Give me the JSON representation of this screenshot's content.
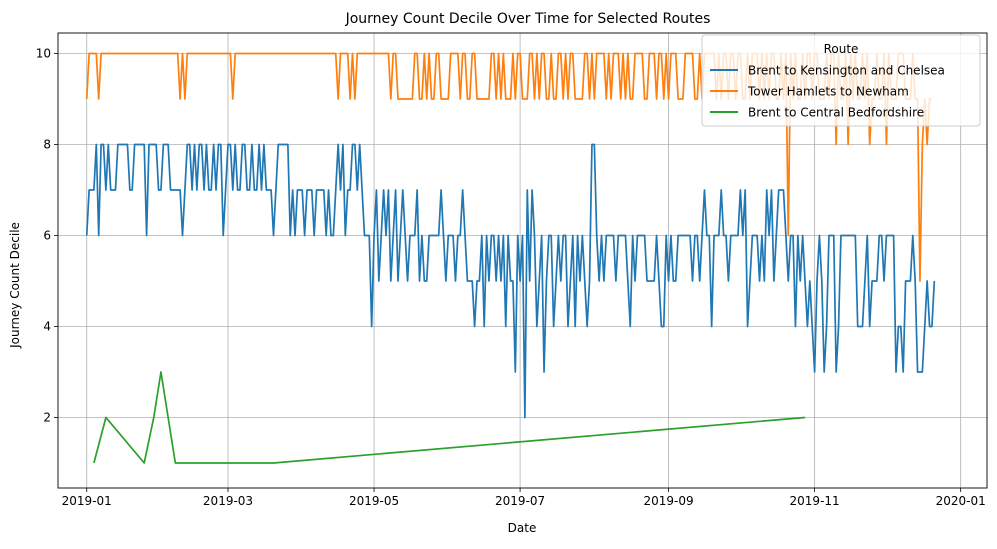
{
  "chart_data": {
    "type": "line",
    "title": "Journey Count Decile Over Time for Selected Routes",
    "xlabel": "Date",
    "ylabel": "Journey Count Decile",
    "x_range": [
      "2018-12-20",
      "2020-01-12"
    ],
    "ylim": [
      0.45,
      10.45
    ],
    "x_ticks": [
      {
        "date": "2019-01-01",
        "label": "2019-01"
      },
      {
        "date": "2019-03-01",
        "label": "2019-03"
      },
      {
        "date": "2019-05-01",
        "label": "2019-05"
      },
      {
        "date": "2019-07-01",
        "label": "2019-07"
      },
      {
        "date": "2019-09-01",
        "label": "2019-09"
      },
      {
        "date": "2019-11-01",
        "label": "2019-11"
      },
      {
        "date": "2020-01-01",
        "label": "2020-01"
      }
    ],
    "y_ticks": [
      2,
      4,
      6,
      8,
      10
    ],
    "grid": true,
    "legend_title": "Route",
    "legend_position": "top-right",
    "series": [
      {
        "name": "Brent to Kensington and Chelsea",
        "color": "#1f77b4",
        "start_date": "2019-01-01",
        "values": [
          6,
          7,
          7,
          7,
          8,
          6,
          8,
          8,
          7,
          8,
          7,
          7,
          7,
          8,
          8,
          8,
          8,
          8,
          7,
          7,
          8,
          8,
          8,
          8,
          8,
          6,
          8,
          8,
          8,
          8,
          7,
          7,
          8,
          8,
          8,
          7,
          7,
          7,
          7,
          7,
          6,
          7,
          8,
          8,
          7,
          8,
          7,
          8,
          8,
          7,
          8,
          7,
          7,
          8,
          7,
          8,
          8,
          6,
          7,
          8,
          8,
          7,
          8,
          7,
          7,
          8,
          8,
          7,
          7,
          8,
          7,
          7,
          8,
          7,
          8,
          7,
          7,
          7,
          6,
          7,
          8,
          8,
          8,
          8,
          8,
          6,
          7,
          6,
          7,
          7,
          7,
          6,
          7,
          7,
          7,
          6,
          7,
          7,
          7,
          7,
          6,
          7,
          6,
          6,
          7,
          8,
          7,
          8,
          6,
          7,
          7,
          8,
          8,
          7,
          8,
          7,
          6,
          6,
          6,
          4,
          6,
          7,
          5,
          6,
          7,
          6,
          7,
          5,
          6,
          7,
          5,
          6,
          7,
          6,
          5,
          6,
          6,
          6,
          7,
          5,
          6,
          5,
          5,
          6,
          6,
          6,
          6,
          6,
          7,
          6,
          5,
          6,
          6,
          6,
          5,
          6,
          6,
          7,
          6,
          5,
          5,
          5,
          4,
          5,
          5,
          6,
          4,
          6,
          5,
          6,
          6,
          5,
          6,
          5,
          6,
          4,
          6,
          5,
          5,
          3,
          6,
          5,
          6,
          2,
          7,
          5,
          7,
          6,
          4,
          5,
          6,
          3,
          5,
          6,
          6,
          4,
          5,
          6,
          5,
          6,
          6,
          4,
          5,
          6,
          4,
          6,
          5,
          6,
          5,
          4,
          5,
          8,
          8,
          6,
          5,
          6,
          5,
          6,
          6,
          6,
          6,
          5,
          6,
          6,
          6,
          6,
          5,
          4,
          6,
          5,
          6,
          6,
          6,
          6,
          5,
          5,
          5,
          5,
          6,
          5,
          4,
          4,
          6,
          5,
          6,
          5,
          5,
          6,
          6,
          6,
          6,
          6,
          6,
          5,
          6,
          6,
          5,
          6,
          7,
          6,
          6,
          4,
          6,
          6,
          6,
          7,
          6,
          6,
          5,
          6,
          6,
          6,
          6,
          7,
          6,
          7,
          4,
          5,
          6,
          6,
          6,
          5,
          6,
          5,
          7,
          6,
          7,
          5,
          6,
          7,
          7,
          7,
          6,
          5,
          6,
          6,
          4,
          6,
          5,
          6,
          5,
          4,
          5,
          4,
          3,
          5,
          6,
          5,
          3,
          4,
          6,
          6,
          6,
          3,
          4,
          6,
          6,
          6,
          6,
          6,
          6,
          6,
          4,
          4,
          4,
          5,
          6,
          4,
          5,
          5,
          5,
          6,
          6,
          5,
          6,
          6,
          6,
          6,
          3,
          4,
          4,
          3,
          5,
          5,
          5,
          6,
          5,
          3,
          3,
          3,
          4,
          5,
          4,
          4,
          5
        ]
      },
      {
        "name": "Tower Hamlets to Newham",
        "color": "#ff7f0e",
        "start_date": "2019-01-01",
        "values": [
          9,
          10,
          10,
          10,
          10,
          9,
          10,
          10,
          10,
          10,
          10,
          10,
          10,
          10,
          10,
          10,
          10,
          10,
          10,
          10,
          10,
          10,
          10,
          10,
          10,
          10,
          10,
          10,
          10,
          10,
          10,
          10,
          10,
          10,
          10,
          10,
          10,
          10,
          10,
          9,
          10,
          9,
          10,
          10,
          10,
          10,
          10,
          10,
          10,
          10,
          10,
          10,
          10,
          10,
          10,
          10,
          10,
          10,
          10,
          10,
          10,
          9,
          10,
          10,
          10,
          10,
          10,
          10,
          10,
          10,
          10,
          10,
          10,
          10,
          10,
          10,
          10,
          10,
          10,
          10,
          10,
          10,
          10,
          10,
          10,
          10,
          10,
          10,
          10,
          10,
          10,
          10,
          10,
          10,
          10,
          10,
          10,
          10,
          10,
          10,
          10,
          10,
          10,
          10,
          10,
          9,
          10,
          10,
          10,
          10,
          9,
          10,
          9,
          10,
          10,
          10,
          10,
          10,
          10,
          10,
          10,
          10,
          10,
          10,
          10,
          10,
          10,
          9,
          10,
          10,
          9,
          9,
          9,
          9,
          9,
          9,
          9,
          10,
          10,
          9,
          9,
          10,
          9,
          10,
          9,
          9,
          10,
          10,
          9,
          9,
          9,
          9,
          10,
          10,
          10,
          10,
          9,
          10,
          10,
          9,
          9,
          10,
          10,
          9,
          9,
          9,
          9,
          9,
          9,
          10,
          10,
          9,
          10,
          9,
          10,
          9,
          9,
          9,
          10,
          9,
          10,
          10,
          9,
          9,
          9,
          10,
          10,
          9,
          10,
          9,
          10,
          10,
          9,
          9,
          10,
          9,
          9,
          10,
          10,
          9,
          10,
          9,
          10,
          10,
          9,
          9,
          9,
          9,
          10,
          10,
          9,
          10,
          9,
          10,
          10,
          10,
          10,
          9,
          10,
          9,
          10,
          10,
          10,
          9,
          10,
          9,
          10,
          9,
          9,
          10,
          10,
          10,
          10,
          9,
          9,
          10,
          10,
          10,
          9,
          10,
          10,
          9,
          10,
          9,
          10,
          10,
          10,
          9,
          9,
          9,
          10,
          10,
          10,
          10,
          9,
          9,
          10,
          9,
          10,
          10,
          10,
          10,
          10,
          9,
          10,
          9,
          10,
          10,
          9,
          10,
          10,
          9,
          10,
          10,
          9,
          9,
          10,
          9,
          10,
          10,
          10,
          9,
          10,
          9,
          10,
          9,
          10,
          10,
          9,
          9,
          10,
          9,
          10,
          6,
          10,
          9,
          10,
          9,
          9,
          10,
          9,
          10,
          10,
          9,
          10,
          10,
          9,
          9,
          9,
          10,
          9,
          10,
          10,
          8,
          10,
          9,
          9,
          10,
          8,
          10,
          9,
          10,
          9,
          9,
          10,
          9,
          10,
          8,
          9,
          9,
          10,
          9,
          9,
          10,
          8,
          10,
          9,
          9,
          9,
          10,
          10,
          10,
          9,
          9,
          9,
          10,
          9,
          9,
          5,
          8,
          9,
          8,
          9,
          9
        ]
      },
      {
        "name": "Brent to Central Bedfordshire",
        "color": "#2ca02c",
        "dates": [
          "2019-01-04",
          "2019-01-09",
          "2019-01-25",
          "2019-01-29",
          "2019-02-01",
          "2019-02-07",
          "2019-03-20",
          "2019-10-28"
        ],
        "values": [
          1,
          2,
          1,
          2,
          3,
          1,
          1,
          2
        ]
      }
    ]
  }
}
